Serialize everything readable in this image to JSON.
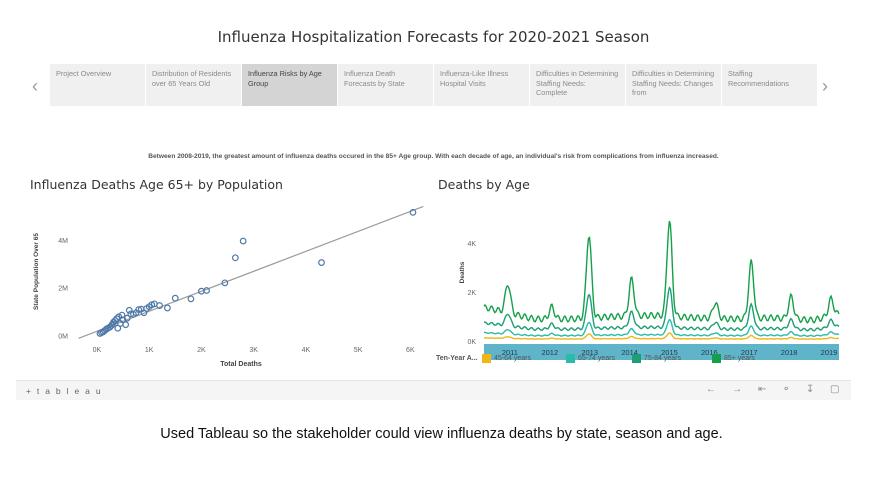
{
  "dashboard": {
    "title": "Influenza Hospitalization Forecasts for 2020-2021 Season",
    "nav_prev": "‹",
    "nav_next": "›",
    "story_points": [
      "Project Overview",
      "Distribution of Residents over 65 Years Old",
      "Influenza Risks by Age Group",
      "Influenza Death Forecasts by State",
      "Influenza-Like Illness Hospital Visits",
      "Difficulties in Determining Staffing Needs: Complete",
      "Difficulties in Determining Staffing Needs: Changes from",
      "Staffing Recommendations"
    ],
    "active_story_index": 2,
    "caption": "Between 2008-2019, the greatest amount of influenza deaths occured in the 85+ Age group. With each decade of age, an individual's risk from complications from influenza increased.",
    "toolbar": {
      "logo": "+ t a b l e a u",
      "icons": [
        "undo-icon",
        "redo-icon",
        "revert-icon",
        "share-icon",
        "download-icon",
        "fullscreen-icon"
      ]
    }
  },
  "slide_caption": "Used Tableau so the stakeholder could view influenza deaths  by state, season and age.",
  "colors": {
    "scatter_point": "#4e79a7",
    "trend_line": "#9b9b9b",
    "year_band": "#5fb4c9",
    "s45": "#f1b615",
    "s65": "#2bbbad",
    "s75": "#1d9e74",
    "s85": "#14a048"
  },
  "chart_data": [
    {
      "type": "scatter",
      "title": "Influenza Deaths Age 65+ by Population",
      "xlabel": "Total Deaths",
      "ylabel": "State Population Over 65",
      "xlim": [
        -400,
        6300
      ],
      "ylim": [
        -150000,
        5500000
      ],
      "x_ticks": [
        0,
        1000,
        2000,
        3000,
        4000,
        5000,
        6000
      ],
      "x_tick_labels": [
        "0K",
        "1K",
        "2K",
        "3K",
        "4K",
        "5K",
        "6K"
      ],
      "y_ticks": [
        0,
        2000000,
        4000000
      ],
      "y_tick_labels": [
        "0M",
        "2M",
        "4M"
      ],
      "trend_line": {
        "x": [
          -350,
          6250
        ],
        "y": [
          -120000,
          5400000
        ]
      },
      "points": [
        {
          "x": 60,
          "y": 80000
        },
        {
          "x": 90,
          "y": 120000
        },
        {
          "x": 120,
          "y": 150000
        },
        {
          "x": 150,
          "y": 200000
        },
        {
          "x": 180,
          "y": 260000
        },
        {
          "x": 210,
          "y": 300000
        },
        {
          "x": 250,
          "y": 350000
        },
        {
          "x": 280,
          "y": 420000
        },
        {
          "x": 300,
          "y": 480000
        },
        {
          "x": 320,
          "y": 560000
        },
        {
          "x": 350,
          "y": 620000
        },
        {
          "x": 380,
          "y": 700000
        },
        {
          "x": 400,
          "y": 300000
        },
        {
          "x": 420,
          "y": 780000
        },
        {
          "x": 450,
          "y": 500000
        },
        {
          "x": 480,
          "y": 850000
        },
        {
          "x": 500,
          "y": 650000
        },
        {
          "x": 550,
          "y": 450000
        },
        {
          "x": 580,
          "y": 720000
        },
        {
          "x": 620,
          "y": 1050000
        },
        {
          "x": 650,
          "y": 900000
        },
        {
          "x": 700,
          "y": 880000
        },
        {
          "x": 750,
          "y": 950000
        },
        {
          "x": 800,
          "y": 1080000
        },
        {
          "x": 850,
          "y": 1100000
        },
        {
          "x": 900,
          "y": 950000
        },
        {
          "x": 950,
          "y": 1120000
        },
        {
          "x": 1000,
          "y": 1200000
        },
        {
          "x": 1050,
          "y": 1280000
        },
        {
          "x": 1100,
          "y": 1320000
        },
        {
          "x": 1200,
          "y": 1250000
        },
        {
          "x": 1350,
          "y": 1150000
        },
        {
          "x": 1500,
          "y": 1560000
        },
        {
          "x": 1800,
          "y": 1530000
        },
        {
          "x": 2000,
          "y": 1850000
        },
        {
          "x": 2100,
          "y": 1880000
        },
        {
          "x": 2450,
          "y": 2200000
        },
        {
          "x": 2650,
          "y": 3250000
        },
        {
          "x": 2800,
          "y": 3950000
        },
        {
          "x": 4300,
          "y": 3050000
        },
        {
          "x": 6050,
          "y": 5150000
        }
      ]
    },
    {
      "type": "line",
      "title": "Deaths by Age",
      "xlabel": "",
      "ylabel": "Deaths",
      "x_start": 2010.35,
      "x_end": 2019.25,
      "ylim": [
        0,
        5600
      ],
      "y_ticks": [
        0,
        2000,
        4000
      ],
      "y_tick_labels": [
        "0K",
        "2K",
        "4K"
      ],
      "x_tick_labels": [
        "2011",
        "2012",
        "2013",
        "2014",
        "2015",
        "2016",
        "2017",
        "2018",
        "2019"
      ],
      "legend_title": "Ten-Year A...",
      "series": [
        {
          "name": "45-64 years",
          "color_key": "s45",
          "base": 120,
          "peak_scale": 0.06
        },
        {
          "name": "65-74 years",
          "color_key": "s65",
          "base": 320,
          "peak_scale": 0.16
        },
        {
          "name": "75-84 years",
          "color_key": "s75",
          "base": 700,
          "peak_scale": 0.42
        },
        {
          "name": "85+ years",
          "color_key": "s85",
          "base": 1300,
          "peak_scale": 1.0
        }
      ],
      "season_peaks_85": [
        {
          "year": 2010.95,
          "height": 1200
        },
        {
          "year": 2012.05,
          "height": 500
        },
        {
          "year": 2012.98,
          "height": 3400
        },
        {
          "year": 2014.05,
          "height": 1500
        },
        {
          "year": 2015.0,
          "height": 3900
        },
        {
          "year": 2016.15,
          "height": 650
        },
        {
          "year": 2017.05,
          "height": 2300
        },
        {
          "year": 2018.05,
          "height": 900
        },
        {
          "year": 2019.05,
          "height": 700
        }
      ],
      "low_points": [
        {
          "year": 2010.45,
          "value": 1350
        },
        {
          "year": 2011.6,
          "value": 900
        },
        {
          "year": 2012.55,
          "value": 900
        },
        {
          "year": 2013.6,
          "value": 1000
        },
        {
          "year": 2014.6,
          "value": 1050
        },
        {
          "year": 2015.65,
          "value": 950
        },
        {
          "year": 2016.6,
          "value": 900
        },
        {
          "year": 2017.6,
          "value": 950
        },
        {
          "year": 2018.6,
          "value": 850
        },
        {
          "year": 2019.25,
          "value": 1100
        }
      ]
    }
  ]
}
